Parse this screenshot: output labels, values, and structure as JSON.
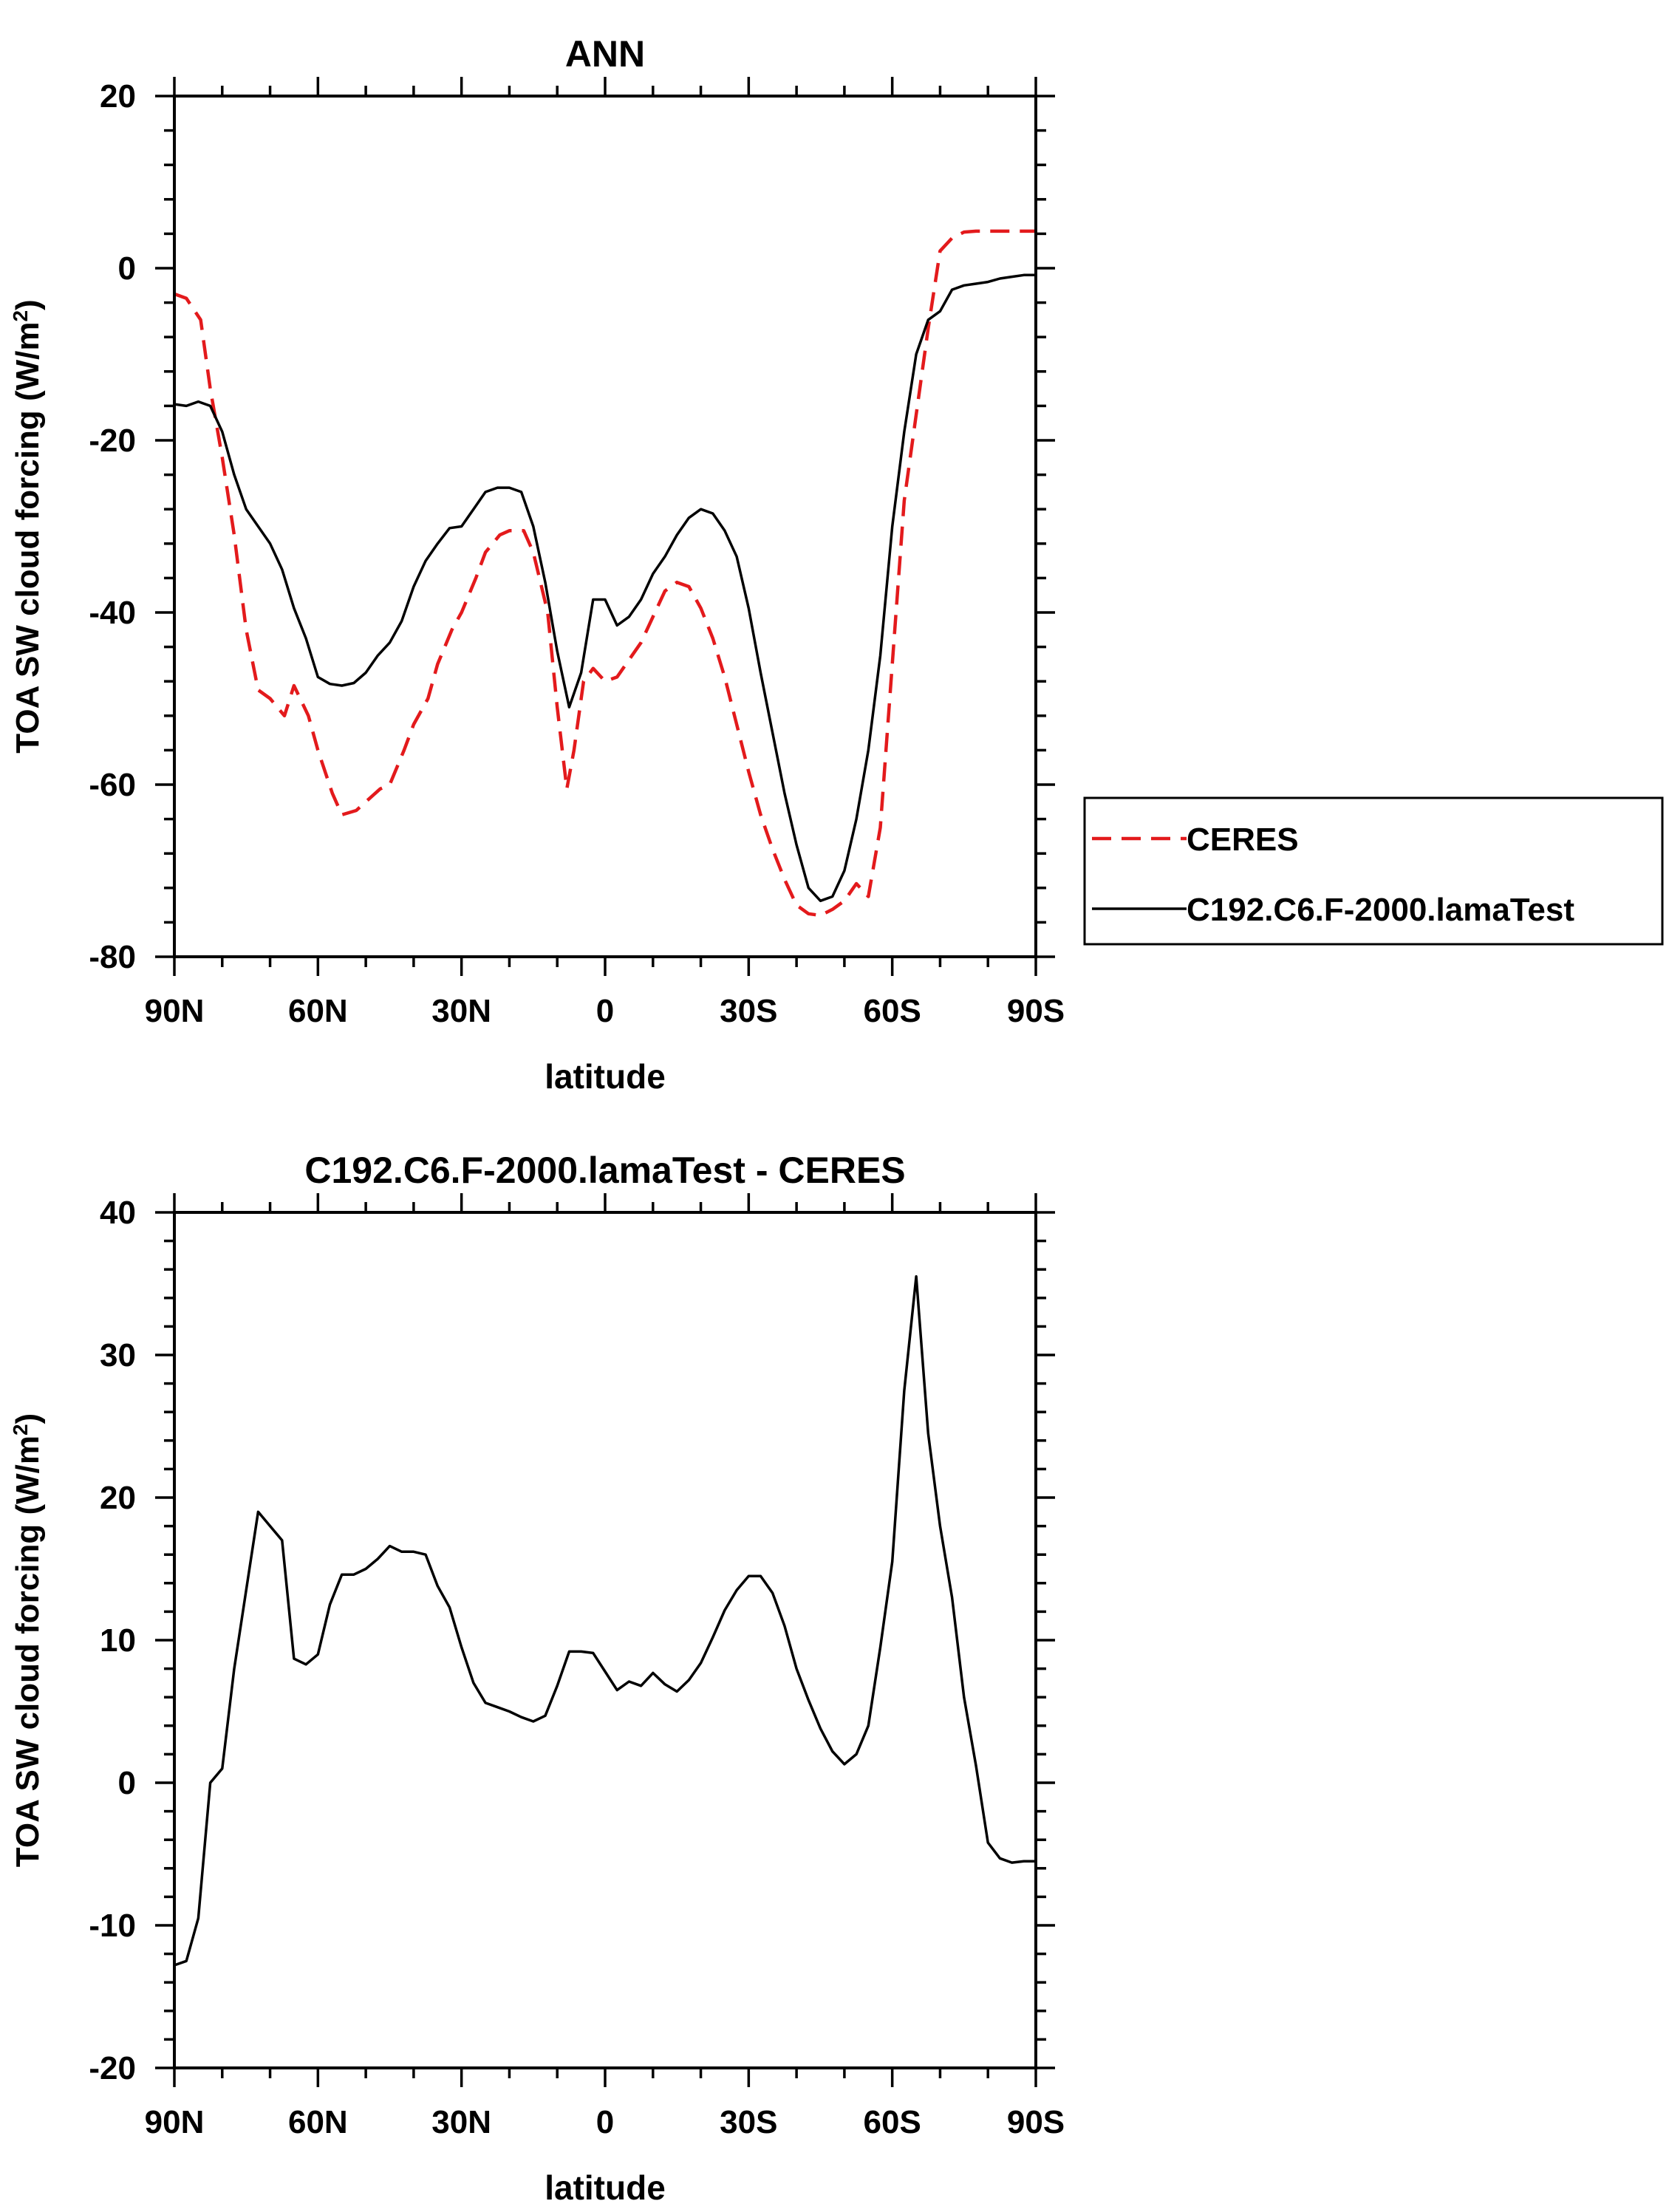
{
  "colors": {
    "obs": "#e31a1c",
    "model": "#000000",
    "axis": "#000000"
  },
  "chart_data": [
    {
      "type": "line",
      "title": "ANN",
      "xlabel": "latitude",
      "ylabel": "TOA SW cloud forcing (W/m",
      "ylabel_sup": "2",
      "ylabel_tail": ")",
      "xlim": [
        90,
        -90
      ],
      "ylim": [
        -80,
        20
      ],
      "xticks": [
        90,
        60,
        30,
        0,
        -30,
        -60,
        -90
      ],
      "xtick_labels": [
        "90N",
        "60N",
        "30N",
        "0",
        "30S",
        "60S",
        "90S"
      ],
      "yticks": [
        20,
        0,
        -20,
        -40,
        -60,
        -80
      ],
      "ytick_labels": [
        "20",
        "0",
        "-20",
        "-40",
        "-60",
        "-80"
      ],
      "legend": {
        "position": "right",
        "entries": [
          "CERES",
          "C192.C6.F-2000.lamaTest"
        ]
      },
      "series": [
        {
          "name": "CERES",
          "style": "dashed",
          "x": [
            90,
            87.5,
            84.5,
            82.5,
            80,
            77.5,
            75,
            72.5,
            70,
            67,
            65,
            62,
            60,
            57,
            55,
            52,
            50,
            47,
            45,
            42,
            40,
            37,
            35,
            32,
            30,
            27,
            25,
            22,
            20,
            17,
            15,
            12,
            10,
            8,
            6.5,
            4.5,
            2.5,
            0,
            -2.5,
            -5,
            -7.5,
            -10,
            -12.5,
            -15,
            -17.5,
            -20,
            -22.5,
            -25,
            -27.5,
            -30,
            -32.5,
            -35,
            -37.5,
            -40,
            -42.5,
            -45,
            -47.5,
            -50,
            -52.5,
            -55,
            -57.5,
            -60,
            -62.5,
            -65,
            -67.5,
            -70,
            -72.5,
            -75,
            -77.5,
            -80,
            -82.5,
            -85,
            -87.5,
            -90
          ],
          "y": [
            -3,
            -3.5,
            -6,
            -14,
            -22,
            -31,
            -42,
            -49,
            -50,
            -52,
            -48.5,
            -52,
            -56,
            -61,
            -63.5,
            -63,
            -62,
            -60.5,
            -60,
            -56,
            -53,
            -50,
            -46,
            -42,
            -40,
            -36,
            -33,
            -31,
            -30.5,
            -30.5,
            -33,
            -40,
            -51,
            -60.5,
            -56,
            -48,
            -46.5,
            -48,
            -47.5,
            -45.5,
            -43.5,
            -40.5,
            -37.5,
            -36.5,
            -37,
            -39.5,
            -43,
            -47.5,
            -53,
            -58.5,
            -63.5,
            -67.5,
            -71,
            -74,
            -75,
            -75.2,
            -74.5,
            -73.5,
            -71.5,
            -73,
            -65,
            -46,
            -27,
            -17,
            -7,
            2,
            3.5,
            4.2,
            4.3,
            4.3,
            4.3,
            4.3,
            4.3,
            4.3
          ]
        },
        {
          "name": "C192.C6.F-2000.lamaTest",
          "style": "solid",
          "x": [
            90,
            87.5,
            85,
            82.5,
            80,
            77.5,
            75,
            72.5,
            70,
            67.5,
            65,
            62.5,
            60,
            57.5,
            55,
            52.5,
            50,
            47.5,
            45,
            42.5,
            40,
            37.5,
            35,
            32.5,
            30,
            27.5,
            25,
            22.5,
            20,
            17.5,
            15,
            12.5,
            10,
            7.5,
            5,
            2.5,
            0,
            -2.5,
            -5,
            -7.5,
            -10,
            -12.5,
            -15,
            -17.5,
            -20,
            -22.5,
            -25,
            -27.5,
            -30,
            -32.5,
            -35,
            -37.5,
            -40,
            -42.5,
            -45,
            -47.5,
            -50,
            -52.5,
            -55,
            -57.5,
            -60,
            -62.5,
            -65,
            -67.5,
            -70,
            -72.5,
            -75,
            -77.5,
            -80,
            -82.5,
            -85,
            -87.5,
            -90
          ],
          "y": [
            -15.8,
            -16,
            -15.5,
            -16,
            -19,
            -24,
            -28,
            -30,
            -32,
            -35,
            -39.5,
            -43,
            -47.5,
            -48.3,
            -48.5,
            -48.2,
            -47,
            -45,
            -43.5,
            -41,
            -37,
            -34,
            -32,
            -30.2,
            -30,
            -28,
            -26,
            -25.5,
            -25.5,
            -26,
            -30,
            -36.5,
            -44.5,
            -51,
            -47,
            -38.5,
            -38.5,
            -41.5,
            -40.5,
            -38.5,
            -35.5,
            -33.5,
            -31,
            -29,
            -28,
            -28.5,
            -30.5,
            -33.5,
            -39.5,
            -47,
            -54,
            -61,
            -67,
            -72,
            -73.5,
            -73,
            -70,
            -64,
            -56,
            -45,
            -30,
            -19,
            -10,
            -6,
            -5,
            -2.5,
            -2,
            -1.8,
            -1.6,
            -1.2,
            -1,
            -0.8,
            -0.8
          ]
        }
      ]
    },
    {
      "type": "line",
      "title": "C192.C6.F-2000.lamaTest - CERES",
      "xlabel": "latitude",
      "ylabel": "TOA SW cloud forcing (W/m",
      "ylabel_sup": "2",
      "ylabel_tail": ")",
      "xlim": [
        90,
        -90
      ],
      "ylim": [
        -20,
        40
      ],
      "xticks": [
        90,
        60,
        30,
        0,
        -30,
        -60,
        -90
      ],
      "xtick_labels": [
        "90N",
        "60N",
        "30N",
        "0",
        "30S",
        "60S",
        "90S"
      ],
      "yticks": [
        40,
        30,
        20,
        10,
        0,
        -10,
        -20
      ],
      "ytick_labels": [
        "40",
        "30",
        "20",
        "10",
        "0",
        "-10",
        "-20"
      ],
      "series": [
        {
          "style": "solid",
          "x": [
            90,
            87.5,
            85,
            82.5,
            80,
            77.5,
            75,
            72.5,
            70,
            67.5,
            65,
            62.5,
            60,
            57.5,
            55,
            52.5,
            50,
            47.5,
            45,
            42.5,
            40,
            37.5,
            35,
            32.5,
            30,
            27.5,
            25,
            22.5,
            20,
            17.5,
            15,
            12.5,
            10,
            7.5,
            5,
            2.5,
            0,
            -2.5,
            -5,
            -7.5,
            -10,
            -12.5,
            -15,
            -17.5,
            -20,
            -22.5,
            -25,
            -27.5,
            -30,
            -32.5,
            -35,
            -37.5,
            -40,
            -42.5,
            -45,
            -47.5,
            -50,
            -52.5,
            -55,
            -57.5,
            -60,
            -62.5,
            -65,
            -67.5,
            -70,
            -72.5,
            -75,
            -77.5,
            -80,
            -82.5,
            -85,
            -87.5,
            -90
          ],
          "y": [
            -12.8,
            -12.5,
            -9.5,
            0,
            1,
            8,
            13.5,
            19,
            18,
            17,
            8.7,
            8.3,
            9,
            12.5,
            14.6,
            14.6,
            15,
            15.7,
            16.6,
            16.2,
            16.2,
            16,
            13.8,
            12.3,
            9.5,
            7,
            5.6,
            5.3,
            5,
            4.6,
            4.3,
            4.7,
            6.8,
            9.2,
            9.2,
            9.1,
            7.8,
            6.5,
            7.1,
            6.8,
            7.7,
            6.9,
            6.4,
            7.2,
            8.4,
            10.2,
            12.1,
            13.5,
            14.5,
            14.5,
            13.3,
            11,
            8,
            5.8,
            3.8,
            2.2,
            1.3,
            2,
            4,
            9.5,
            15.5,
            27.5,
            35.5,
            24.5,
            18,
            13,
            6,
            1.2,
            -4.2,
            -5.3,
            -5.6,
            -5.5,
            -5.5
          ]
        }
      ]
    }
  ]
}
